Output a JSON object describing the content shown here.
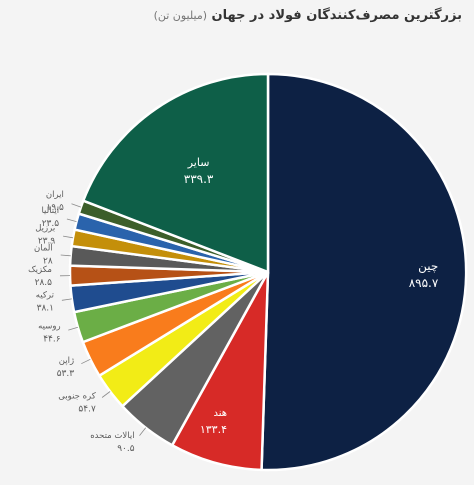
{
  "chart_data": {
    "type": "pie",
    "title": "بزرگترین مصرف‌کنندگان فولاد در جهان",
    "unit": "(میلیون تن)",
    "slices": [
      {
        "name": "چین",
        "value": 895.7,
        "value_label": "۸۹۵.۷",
        "color": "#0d2144"
      },
      {
        "name": "هند",
        "value": 133.4,
        "value_label": "۱۳۳.۴",
        "color": "#d72a27"
      },
      {
        "name": "ایالات متحده",
        "value": 90.5,
        "value_label": "۹۰.۵",
        "color": "#626262"
      },
      {
        "name": "کره جنوبی",
        "value": 54.7,
        "value_label": "۵۴.۷",
        "color": "#f2ec16"
      },
      {
        "name": "ژاپن",
        "value": 53.3,
        "value_label": "۵۳.۳",
        "color": "#f97c1c"
      },
      {
        "name": "روسیه",
        "value": 44.6,
        "value_label": "۴۴.۶",
        "color": "#6bae46"
      },
      {
        "name": "ترکیه",
        "value": 38.1,
        "value_label": "۳۸.۱",
        "color": "#1f4c8f"
      },
      {
        "name": "مکزیک",
        "value": 28.5,
        "value_label": "۲۸.۵",
        "color": "#b65116"
      },
      {
        "name": "آلمان",
        "value": 28,
        "value_label": "۲۸",
        "color": "#595959"
      },
      {
        "name": "برزیل",
        "value": 23.9,
        "value_label": "۲۳.۹",
        "color": "#c48f0a"
      },
      {
        "name": "ایتالیا",
        "value": 23.5,
        "value_label": "۲۳.۵",
        "color": "#2a63ac"
      },
      {
        "name": "ایران",
        "value": 19.5,
        "value_label": "۱۹.۵",
        "color": "#3c5e2a"
      },
      {
        "name": "سایر",
        "value": 339.3,
        "value_label": "۳۳۹.۳",
        "color": "#0e5f48"
      }
    ]
  }
}
